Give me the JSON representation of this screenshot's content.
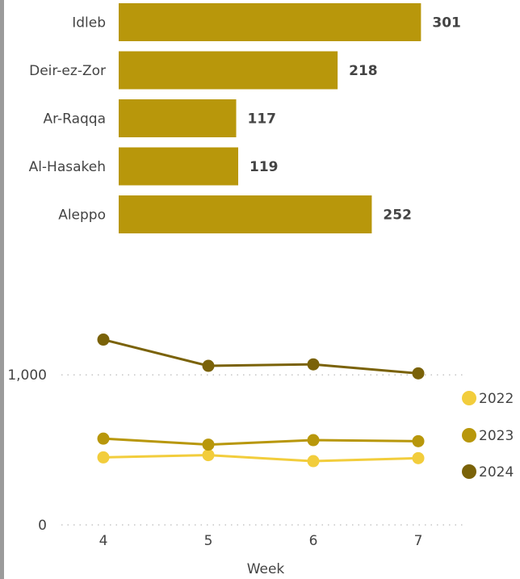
{
  "colors": {
    "bar": "#b8970b",
    "series_2022": "#f2cd3c",
    "series_2023": "#b8970b",
    "series_2024": "#7a6208",
    "label": "#444444",
    "grid": "#c6c6c6",
    "background": "#ffffff",
    "left_rule": "#9b9b9b"
  },
  "chart_data": [
    {
      "type": "bar",
      "orientation": "horizontal",
      "categories": [
        "Idleb",
        "Deir-ez-Zor",
        "Ar-Raqqa",
        "Al-Hasakeh",
        "Aleppo"
      ],
      "values": [
        301,
        218,
        117,
        119,
        252
      ],
      "title": "",
      "xlabel": "",
      "ylabel": "",
      "xlim": [
        0,
        320
      ],
      "data_labels": true,
      "grid": false
    },
    {
      "type": "line",
      "x": [
        4,
        5,
        6,
        7
      ],
      "xlabel": "Week",
      "ylabel": "",
      "ylim": [
        0,
        1500
      ],
      "ytick_values": [
        0,
        1000
      ],
      "ytick_labels": [
        "0",
        "1,000"
      ],
      "grid": true,
      "legend_position": "right",
      "series": [
        {
          "name": "2022",
          "values": [
            450,
            465,
            425,
            445
          ]
        },
        {
          "name": "2023",
          "values": [
            575,
            535,
            565,
            558
          ]
        },
        {
          "name": "2024",
          "values": [
            1235,
            1060,
            1070,
            1010
          ]
        }
      ]
    }
  ]
}
